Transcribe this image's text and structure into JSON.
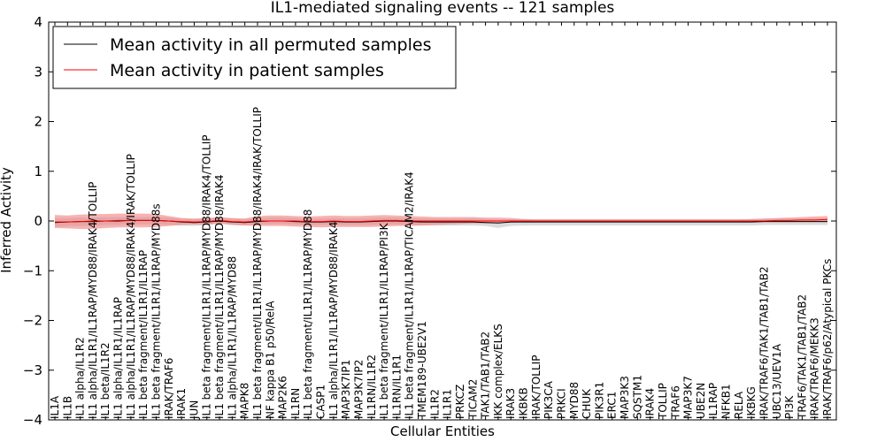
{
  "chart_data": {
    "type": "line",
    "title": "IL1-mediated signaling events -- 121 samples",
    "xlabel": "Cellular Entities",
    "ylabel": "Inferred Activity",
    "ylim": [
      -4,
      4
    ],
    "yticks": [
      -4,
      -3,
      -2,
      -1,
      0,
      1,
      2,
      3,
      4
    ],
    "grid": false,
    "legend_position": "top-left",
    "categories": [
      "IL1A",
      "IL1B",
      "IL1 alpha/IL1R2",
      "IL1 alpha/IL1R1/IL1RAP/MYD88/IRAK4/TOLLIP",
      "IL1 beta/IL1R2",
      "IL1 alpha/IL1R1/IL1RAP",
      "IL1 alpha/IL1R1/IL1RAP/MYD88/IRAK4/IRAK/TOLLIP",
      "IL1 beta fragment/IL1R1/IL1RAP",
      "IL1 beta fragment/IL1R1/IL1RAP/MYD88s",
      "IRAK/TRAF6",
      "IRAK1",
      "JUN",
      "IL1 beta fragment/IL1R1/IL1RAP/MYD88/IRAK4/TOLLIP",
      "IL1 beta fragment/IL1R1/IL1RAP/MYD88/IRAK4",
      "IL1 alpha/IL1R1/IL1RAP/MYD88",
      "MAPK8",
      "IL1 beta fragment/IL1R1/IL1RAP/MYD88/IRAK4/IRAK/TOLLIP",
      "NF kappa B1 p50/RelA",
      "MAP2K6",
      "IL1RN",
      "IL1 beta fragment/IL1R1/IL1RAP/MYD88",
      "CASP1",
      "IL1 alpha/IL1R1/IL1RAP/MYD88/IRAK4",
      "MAP3K7IP1",
      "MAP3K7IP2",
      "IL1RN/IL1R2",
      "IL1 beta fragment/IL1R1/IL1RAP/PI3K",
      "IL1RN/IL1R1",
      "IL1 beta fragment/IL1R1/IL1RAP/TICAM2/IRAK4",
      "TMEM189-UBE2V1",
      "IL1R2",
      "IL1R1",
      "PRKCZ",
      "TICAM2",
      "TAK1/TAB1/TAB2",
      "IKK complex/ELKS",
      "IRAK3",
      "IKBKB",
      "IRAK/TOLLIP",
      "PIK3CA",
      "PRKCI",
      "MYD88",
      "CHUK",
      "PIK3R1",
      "ERC1",
      "MAP3K3",
      "SQSTM1",
      "IRAK4",
      "TOLLIP",
      "TRAF6",
      "MAP3K7",
      "UBE2N",
      "IL1RAP",
      "NFKB1",
      "RELA",
      "IKBKG",
      "IRAK/TRAF6/TAK1/TAB1/TAB2",
      "UBC13/UEV1A",
      "PI3K",
      "TRAF6/TAK1/TAB1/TAB2",
      "IRAK/TRAF6/MEKK3",
      "IRAK/TRAF6/p62/Atypical PKCs"
    ],
    "series": [
      {
        "name": "Mean activity in all permuted samples",
        "color": "#000000",
        "values": [
          -0.03,
          -0.02,
          -0.01,
          -0.01,
          0.0,
          0.0,
          0.01,
          0.01,
          0.01,
          0.0,
          -0.02,
          -0.03,
          -0.02,
          0.0,
          -0.02,
          -0.03,
          -0.01,
          0.0,
          0.0,
          -0.01,
          -0.02,
          -0.02,
          -0.01,
          -0.02,
          -0.02,
          -0.01,
          0.0,
          0.0,
          -0.01,
          -0.02,
          -0.02,
          -0.02,
          -0.02,
          -0.02,
          -0.03,
          -0.04,
          -0.02,
          -0.02,
          -0.02,
          -0.02,
          -0.02,
          -0.02,
          -0.02,
          -0.02,
          -0.02,
          -0.02,
          -0.02,
          -0.02,
          -0.02,
          -0.02,
          -0.02,
          -0.02,
          -0.02,
          -0.02,
          -0.02,
          -0.02,
          -0.01,
          -0.01,
          -0.01,
          -0.01,
          -0.01,
          -0.01
        ],
        "band_lower": [
          -0.12,
          -0.1,
          -0.1,
          -0.1,
          -0.08,
          -0.08,
          -0.07,
          -0.07,
          -0.07,
          -0.08,
          -0.09,
          -0.1,
          -0.08,
          -0.05,
          -0.08,
          -0.09,
          -0.07,
          -0.06,
          -0.06,
          -0.07,
          -0.08,
          -0.08,
          -0.07,
          -0.08,
          -0.08,
          -0.08,
          -0.07,
          -0.07,
          -0.08,
          -0.09,
          -0.09,
          -0.09,
          -0.09,
          -0.09,
          -0.1,
          -0.14,
          -0.1,
          -0.09,
          -0.09,
          -0.09,
          -0.09,
          -0.09,
          -0.09,
          -0.09,
          -0.09,
          -0.09,
          -0.09,
          -0.09,
          -0.09,
          -0.09,
          -0.09,
          -0.09,
          -0.09,
          -0.09,
          -0.09,
          -0.09,
          -0.08,
          -0.08,
          -0.08,
          -0.08,
          -0.08,
          -0.08
        ],
        "band_upper": [
          0.06,
          0.06,
          0.07,
          0.07,
          0.08,
          0.08,
          0.08,
          0.08,
          0.08,
          0.07,
          0.05,
          0.04,
          0.05,
          0.06,
          0.05,
          0.04,
          0.06,
          0.07,
          0.07,
          0.06,
          0.05,
          0.05,
          0.06,
          0.05,
          0.05,
          0.06,
          0.07,
          0.07,
          0.06,
          0.05,
          0.05,
          0.05,
          0.05,
          0.05,
          0.04,
          0.03,
          0.04,
          0.04,
          0.04,
          0.04,
          0.04,
          0.04,
          0.04,
          0.04,
          0.04,
          0.04,
          0.04,
          0.04,
          0.04,
          0.04,
          0.04,
          0.04,
          0.04,
          0.04,
          0.04,
          0.04,
          0.05,
          0.05,
          0.05,
          0.05,
          0.05,
          0.05
        ],
        "band_color": "#b0b0b0"
      },
      {
        "name": "Mean activity in patient samples",
        "color": "#ff0000",
        "values": [
          -0.02,
          -0.02,
          -0.01,
          0.0,
          0.0,
          0.01,
          0.01,
          0.01,
          0.01,
          0.0,
          -0.01,
          -0.02,
          -0.01,
          0.01,
          -0.01,
          -0.02,
          0.0,
          0.0,
          0.0,
          0.0,
          -0.01,
          -0.01,
          0.0,
          -0.01,
          -0.01,
          0.0,
          0.01,
          0.01,
          0.0,
          0.0,
          0.0,
          0.0,
          0.0,
          0.0,
          0.0,
          0.0,
          0.0,
          0.0,
          0.0,
          0.0,
          0.0,
          0.0,
          0.0,
          0.0,
          0.0,
          0.0,
          0.0,
          0.0,
          0.0,
          0.0,
          0.0,
          0.0,
          0.0,
          0.0,
          0.0,
          0.0,
          0.0,
          0.01,
          0.01,
          0.02,
          0.02,
          0.03
        ],
        "band_lower": [
          -0.14,
          -0.15,
          -0.16,
          -0.16,
          -0.14,
          -0.13,
          -0.13,
          -0.13,
          -0.12,
          -0.1,
          -0.08,
          -0.07,
          -0.08,
          -0.05,
          -0.08,
          -0.09,
          -0.1,
          -0.1,
          -0.1,
          -0.11,
          -0.12,
          -0.13,
          -0.12,
          -0.12,
          -0.12,
          -0.12,
          -0.11,
          -0.1,
          -0.1,
          -0.09,
          -0.08,
          -0.07,
          -0.06,
          -0.05,
          -0.05,
          -0.04,
          -0.03,
          -0.02,
          -0.02,
          -0.02,
          -0.02,
          -0.02,
          -0.02,
          -0.02,
          -0.02,
          -0.02,
          -0.02,
          -0.02,
          -0.02,
          -0.02,
          -0.02,
          -0.02,
          -0.02,
          -0.02,
          -0.02,
          -0.02,
          -0.02,
          -0.02,
          -0.02,
          -0.02,
          -0.02,
          -0.02
        ],
        "band_upper": [
          0.12,
          0.11,
          0.13,
          0.14,
          0.14,
          0.15,
          0.15,
          0.15,
          0.14,
          0.1,
          0.06,
          0.05,
          0.06,
          0.08,
          0.06,
          0.05,
          0.1,
          0.11,
          0.11,
          0.1,
          0.09,
          0.1,
          0.11,
          0.1,
          0.1,
          0.11,
          0.12,
          0.11,
          0.1,
          0.09,
          0.08,
          0.08,
          0.08,
          0.08,
          0.07,
          0.07,
          0.06,
          0.04,
          0.03,
          0.03,
          0.03,
          0.03,
          0.03,
          0.03,
          0.03,
          0.03,
          0.03,
          0.03,
          0.03,
          0.03,
          0.03,
          0.03,
          0.03,
          0.03,
          0.03,
          0.04,
          0.05,
          0.06,
          0.07,
          0.08,
          0.09,
          0.1
        ],
        "band_color": "#f08080"
      }
    ]
  }
}
